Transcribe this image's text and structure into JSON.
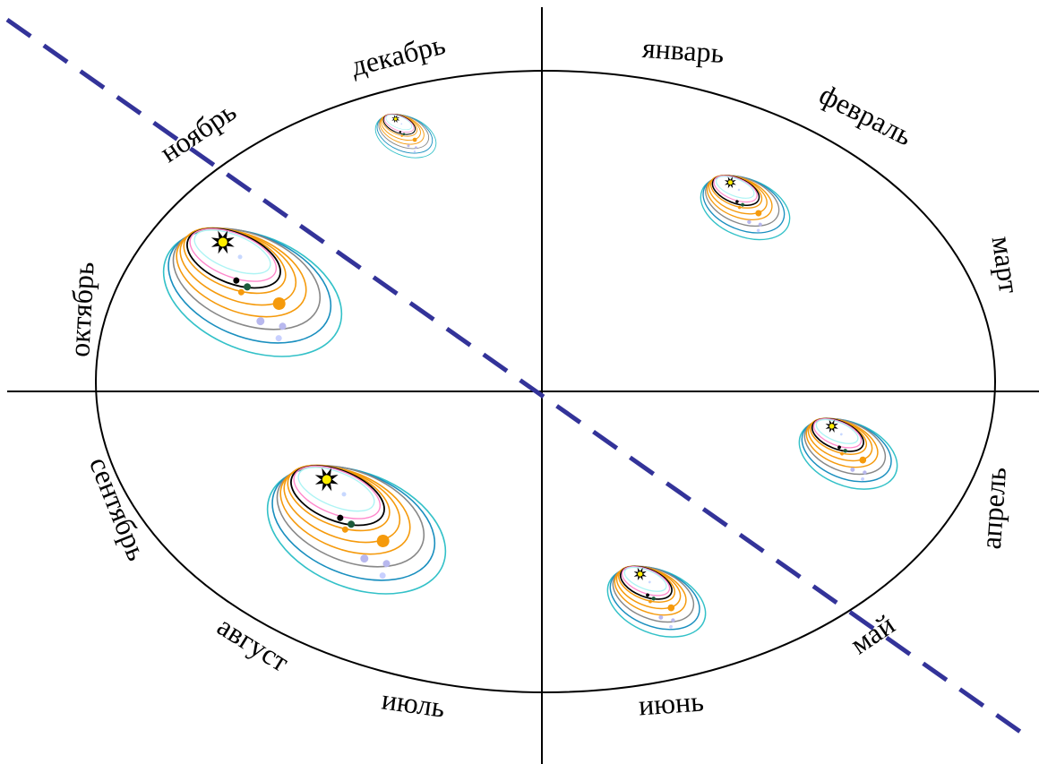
{
  "months": {
    "january": "январь",
    "february": "февраль",
    "march": "март",
    "april": "апрель",
    "may": "май",
    "june": "июнь",
    "july": "июль",
    "august": "август",
    "september": "сентябрь",
    "october": "октябрь",
    "november": "ноябрь",
    "december": "декабрь"
  },
  "colors": {
    "outline": "#000000",
    "dashed_line": "#333399",
    "orbit_cyan": "#33c1c8",
    "orbit_teal": "#1a8fbf",
    "orbit_gray": "#888888",
    "orbit_orange": "#f59a0c",
    "orbit_black": "#000000",
    "orbit_pink": "#ff88cc",
    "orbit_lightcyan": "#aef4f4",
    "sun": "#ffee00"
  },
  "icons": {
    "sun": "sun-icon",
    "planet": "planet-icon"
  }
}
